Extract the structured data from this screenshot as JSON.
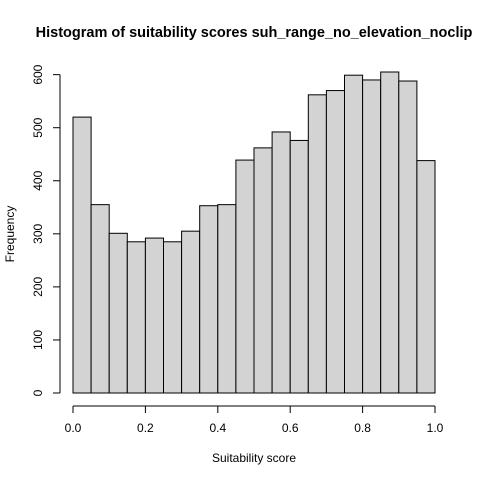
{
  "chart_data": {
    "type": "bar",
    "subtype": "histogram",
    "title": "Histogram of suitability scores suh_range_no_elevation_noclip",
    "xlabel": "Suitability score",
    "ylabel": "Frequency",
    "bin_edges": [
      0.0,
      0.05,
      0.1,
      0.15,
      0.2,
      0.25,
      0.3,
      0.35,
      0.4,
      0.45,
      0.5,
      0.55,
      0.6,
      0.65,
      0.7,
      0.75,
      0.8,
      0.85,
      0.9,
      0.95,
      1.0
    ],
    "values": [
      520,
      355,
      301,
      285,
      292,
      285,
      305,
      353,
      355,
      439,
      462,
      492,
      476,
      562,
      570,
      599,
      590,
      605,
      588,
      438
    ],
    "xlim": [
      0,
      1
    ],
    "ylim": [
      0,
      605
    ],
    "xticks": [
      0.0,
      0.2,
      0.4,
      0.6,
      0.8,
      1.0
    ],
    "xtick_labels": [
      "0.0",
      "0.2",
      "0.4",
      "0.6",
      "0.8",
      "1.0"
    ],
    "yticks": [
      0,
      100,
      200,
      300,
      400,
      500,
      600
    ],
    "ytick_labels": [
      "0",
      "100",
      "200",
      "300",
      "400",
      "500",
      "600"
    ],
    "bar_color": "#d3d3d3",
    "bar_edge_color": "#000000",
    "grid": false,
    "legend": "none"
  }
}
